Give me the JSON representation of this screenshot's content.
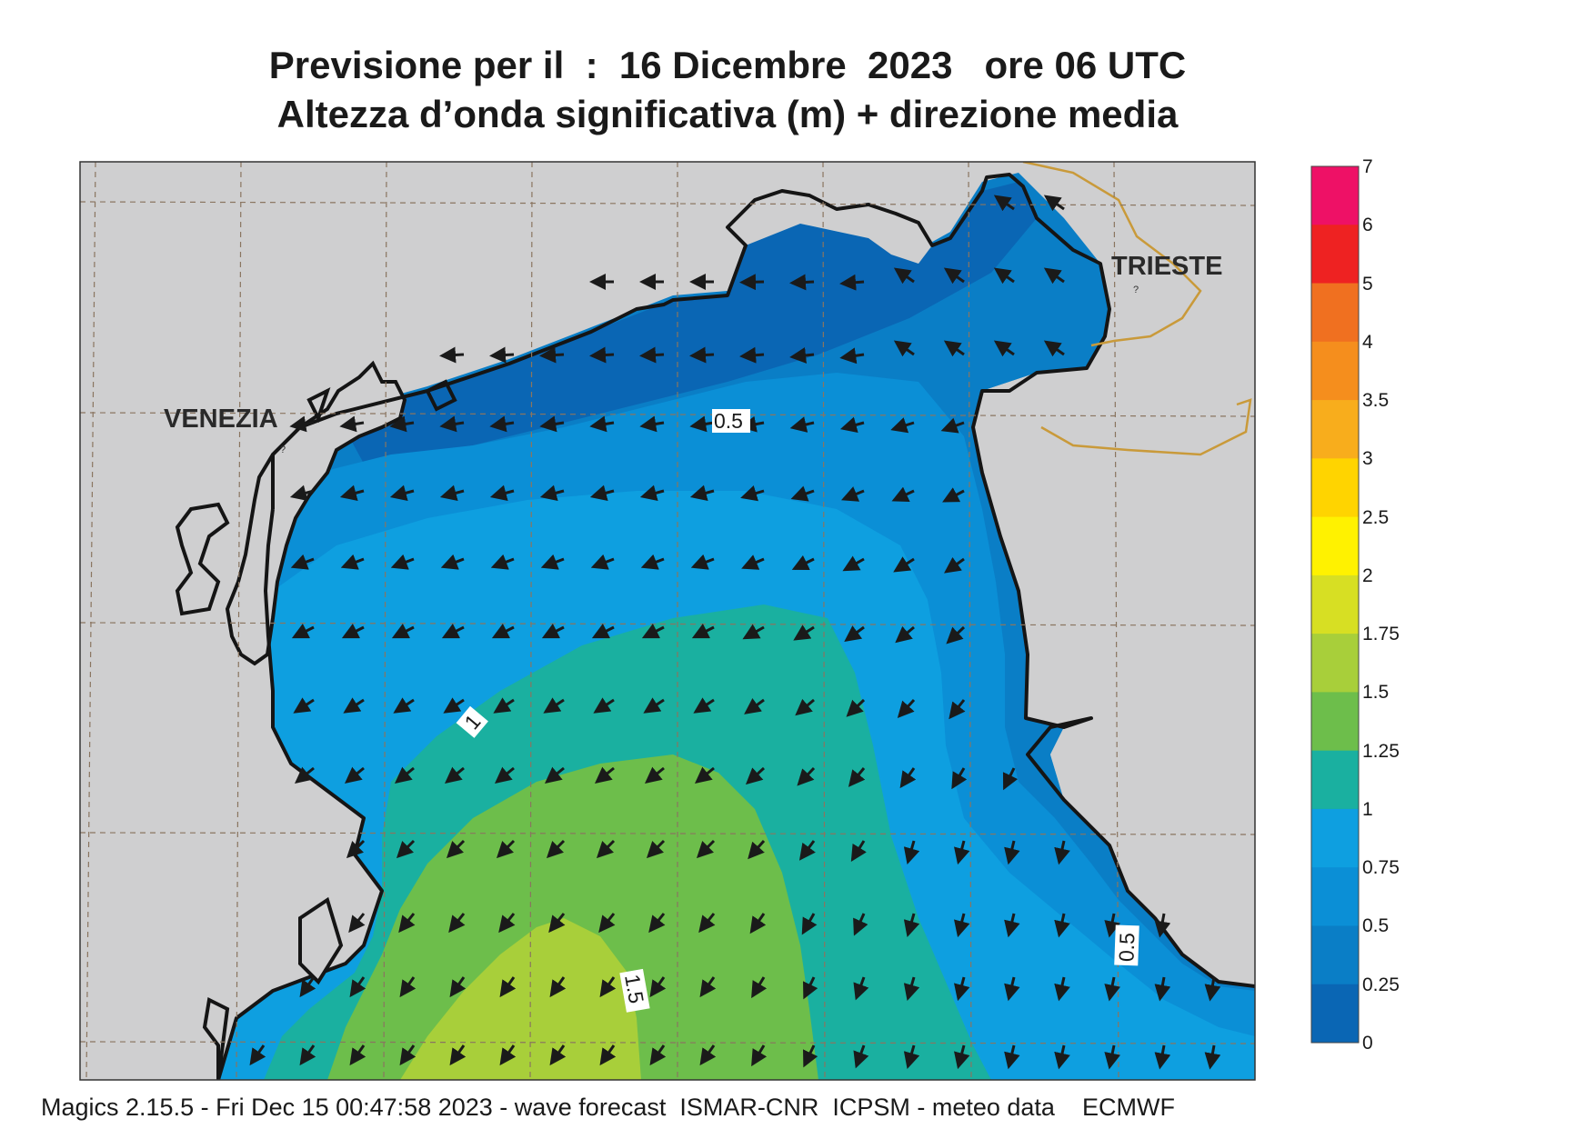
{
  "title": {
    "line1": "Previsione per il  :  16 Dicembre  2023   ore 06 UTC",
    "line2": "Altezza d’onda significativa (m) + direzione media"
  },
  "cities": {
    "venezia": "VENEZIA",
    "trieste": "TRIESTE"
  },
  "contour_labels": {
    "north": "0.5",
    "mid": "1",
    "south": "1.5",
    "east": "0.5"
  },
  "legend": {
    "ticks": [
      "7",
      "6",
      "5",
      "4",
      "3.5",
      "3",
      "2.5",
      "2",
      "1.75",
      "1.5",
      "1.25",
      "1",
      "0.75",
      "0.5",
      "0.25",
      "0"
    ],
    "bands": [
      {
        "from": "6",
        "to": "7",
        "color": "#ee1166"
      },
      {
        "from": "5",
        "to": "6",
        "color": "#ee2222"
      },
      {
        "from": "4",
        "to": "5",
        "color": "#f07020"
      },
      {
        "from": "3.5",
        "to": "4",
        "color": "#f58e1d"
      },
      {
        "from": "3",
        "to": "3.5",
        "color": "#f8ad1c"
      },
      {
        "from": "2.5",
        "to": "3",
        "color": "#ffd400"
      },
      {
        "from": "2",
        "to": "2.5",
        "color": "#fff200"
      },
      {
        "from": "1.75",
        "to": "2",
        "color": "#d7df23"
      },
      {
        "from": "1.5",
        "to": "1.75",
        "color": "#a8cf3a"
      },
      {
        "from": "1.25",
        "to": "1.5",
        "color": "#6dbe4b"
      },
      {
        "from": "1",
        "to": "1.25",
        "color": "#1ab0a0"
      },
      {
        "from": "0.75",
        "to": "1",
        "color": "#0e9fe0"
      },
      {
        "from": "0.5",
        "to": "0.75",
        "color": "#0b8fd6"
      },
      {
        "from": "0.25",
        "to": "0.5",
        "color": "#0a7ec6"
      },
      {
        "from": "0",
        "to": "0.25",
        "color": "#0a66b4"
      }
    ]
  },
  "colors": {
    "land": "#cfcfd0",
    "sea_base": "#0a7ec6",
    "coastline": "#151515",
    "border": "#c99a3a"
  },
  "footer": "Magics 2.15.5 - Fri Dec 15 00:47:58 2023 - wave forecast  ISMAR-CNR  ICPSM - meteo data    ECMWF"
}
